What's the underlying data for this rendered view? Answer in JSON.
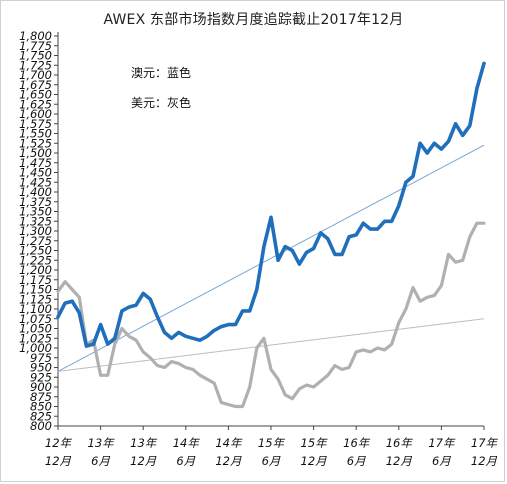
{
  "title": "AWEX 东部市场指数月度追踪截止2017年12月",
  "annotations": [
    "澳元：蓝色",
    "美元：灰色"
  ],
  "chart_data": {
    "type": "line",
    "title": "AWEX 东部市场指数月度追踪截止2017年12月",
    "ylim": [
      800,
      1800
    ],
    "ytick_step": 25,
    "grid": false,
    "x_tick_labels": [
      [
        "12年",
        "12月"
      ],
      [
        "13年",
        "6月"
      ],
      [
        "13年",
        "12月"
      ],
      [
        "14年",
        "6月"
      ],
      [
        "14年",
        "12月"
      ],
      [
        "15年",
        "6月"
      ],
      [
        "15年",
        "12月"
      ],
      [
        "16年",
        "6月"
      ],
      [
        "16年",
        "12月"
      ],
      [
        "17年",
        "6月"
      ],
      [
        "17年",
        "12月"
      ]
    ],
    "series": [
      {
        "label_text": "澳元：蓝色",
        "color": "#1f6fba",
        "values": [
          1080,
          1115,
          1120,
          1090,
          1005,
          1010,
          1060,
          1010,
          1025,
          1095,
          1105,
          1110,
          1140,
          1125,
          1080,
          1040,
          1025,
          1040,
          1030,
          1025,
          1020,
          1030,
          1045,
          1055,
          1060,
          1060,
          1095,
          1095,
          1150,
          1260,
          1335,
          1225,
          1260,
          1250,
          1215,
          1245,
          1255,
          1295,
          1280,
          1240,
          1240,
          1285,
          1290,
          1320,
          1305,
          1305,
          1325,
          1325,
          1365,
          1425,
          1440,
          1525,
          1500,
          1525,
          1510,
          1530,
          1575,
          1545,
          1570,
          1665,
          1730
        ]
      },
      {
        "label_text": "美元：灰色",
        "color": "#b0b0b0",
        "values": [
          1145,
          1170,
          1150,
          1130,
          1010,
          1020,
          930,
          930,
          1010,
          1050,
          1030,
          1020,
          990,
          975,
          955,
          950,
          965,
          960,
          950,
          945,
          930,
          920,
          910,
          860,
          855,
          850,
          850,
          900,
          1000,
          1025,
          945,
          920,
          880,
          870,
          895,
          905,
          900,
          915,
          930,
          955,
          945,
          950,
          990,
          995,
          990,
          1000,
          995,
          1010,
          1065,
          1100,
          1155,
          1120,
          1130,
          1135,
          1160,
          1240,
          1220,
          1225,
          1285,
          1320,
          1320
        ]
      },
      {
        "label_text": "",
        "color": "#7aa6d6",
        "trend": true,
        "values": [
          940,
          1520
        ]
      },
      {
        "label_text": "",
        "color": "#bdbdbd",
        "trend": true,
        "values": [
          940,
          1075
        ]
      }
    ]
  }
}
